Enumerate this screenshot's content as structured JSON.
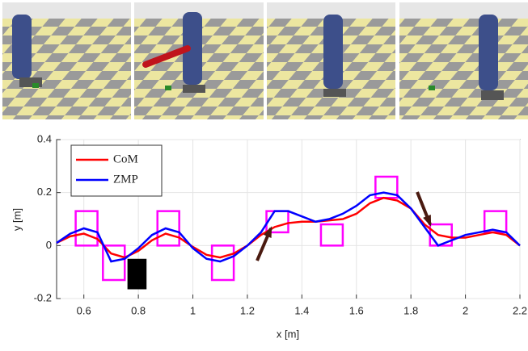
{
  "chart_data": {
    "type": "line",
    "xlabel": "x [m]",
    "ylabel": "y [m]",
    "xlim": [
      0.5,
      2.2
    ],
    "xticks": [
      0.6,
      0.8,
      1,
      1.2,
      1.4,
      1.6,
      1.8,
      2,
      2.2
    ],
    "ylim": [
      -0.2,
      0.4
    ],
    "yticks": [
      -0.2,
      0,
      0.2,
      0.4
    ],
    "grid": true,
    "legend": "top-left",
    "x": [
      0.5,
      0.55,
      0.6,
      0.65,
      0.7,
      0.75,
      0.8,
      0.85,
      0.9,
      0.95,
      1.0,
      1.05,
      1.1,
      1.15,
      1.2,
      1.25,
      1.3,
      1.35,
      1.4,
      1.45,
      1.5,
      1.55,
      1.6,
      1.65,
      1.7,
      1.75,
      1.8,
      1.85,
      1.9,
      1.95,
      2.0,
      2.05,
      2.1,
      2.15,
      2.2
    ],
    "series": [
      {
        "name": "CoM",
        "color": "#ff0000",
        "values": [
          0.01,
          0.035,
          0.045,
          0.025,
          -0.03,
          -0.045,
          -0.02,
          0.02,
          0.045,
          0.03,
          -0.005,
          -0.035,
          -0.045,
          -0.03,
          0.0,
          0.04,
          0.07,
          0.085,
          0.09,
          0.09,
          0.095,
          0.1,
          0.12,
          0.16,
          0.18,
          0.17,
          0.14,
          0.08,
          0.04,
          0.03,
          0.03,
          0.04,
          0.05,
          0.04,
          0.0
        ]
      },
      {
        "name": "ZMP",
        "color": "#0000ff",
        "values": [
          0.01,
          0.045,
          0.065,
          0.05,
          -0.06,
          -0.05,
          -0.01,
          0.04,
          0.065,
          0.05,
          -0.01,
          -0.05,
          -0.06,
          -0.04,
          0.0,
          0.05,
          0.13,
          0.13,
          0.11,
          0.09,
          0.1,
          0.12,
          0.15,
          0.19,
          0.2,
          0.19,
          0.14,
          0.07,
          0.0,
          0.02,
          0.04,
          0.05,
          0.06,
          0.05,
          0.0
        ]
      }
    ],
    "footsteps": {
      "color": "#ff00ff",
      "x0": [
        0.57,
        0.67,
        0.87,
        1.07,
        1.27,
        1.47,
        1.67,
        1.87,
        2.07
      ],
      "x1": [
        0.65,
        0.75,
        0.95,
        1.15,
        1.35,
        1.55,
        1.75,
        1.95,
        2.15
      ],
      "y0": [
        0,
        -0.13,
        0,
        -0.13,
        0.05,
        0,
        0.18,
        0,
        0.05
      ],
      "y1": [
        0.13,
        0,
        0.13,
        0,
        0.13,
        0.08,
        0.26,
        0.08,
        0.13
      ]
    },
    "obstacle": {
      "color": "#000000",
      "x0": 0.76,
      "x1": 0.83,
      "y0": -0.165,
      "y1": -0.05
    }
  }
}
